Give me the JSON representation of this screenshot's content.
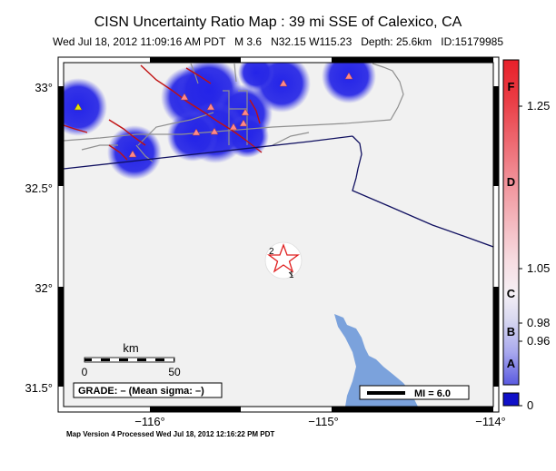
{
  "header": {
    "title": "CISN Uncertainty Ratio Map : 39 mi SSE of Calexico, CA",
    "subtitle": "Wed Jul 18, 2012 11:09:16 AM PDT   M 3.6   N32.15 W115.23   Depth: 25.6km   ID:15179985"
  },
  "axes": {
    "lat_ticks": [
      "33°",
      "32.5°",
      "32°",
      "31.5°"
    ],
    "lon_ticks": [
      "−116°",
      "−115°",
      "−114°"
    ]
  },
  "scale_bar": {
    "unit": "km",
    "start": "0",
    "end": "50"
  },
  "grade_box": "GRADE: – (Mean sigma: –)",
  "mi_legend": "MI = 6.0",
  "station_labels": [
    "2",
    "1"
  ],
  "colorbar": {
    "letters": [
      "F",
      "D",
      "C",
      "B",
      "A"
    ],
    "values": [
      "1.25",
      "1.05",
      "0.98",
      "0.96",
      "0"
    ],
    "colors": {
      "high": "#e8202a",
      "mid": "#f5eef2",
      "low": "#2020d8",
      "min_box": "#1010c8"
    }
  },
  "colors": {
    "land": "#f1f1f1",
    "water": "#7ba2dc",
    "border": "#101060",
    "roads": "#909090",
    "faults": "#c01010",
    "blob": "#2a2ae6",
    "epicenter": "#e02020"
  },
  "footer": "Map Version 4 Processed Wed Jul 18, 2012 12:16:22 PM PDT"
}
